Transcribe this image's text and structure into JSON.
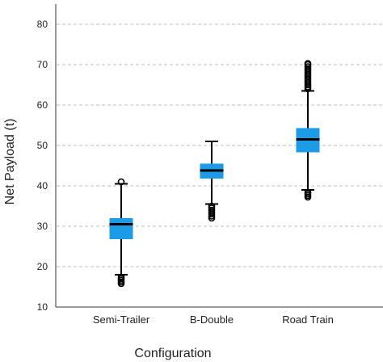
{
  "chart_data": {
    "type": "box",
    "xlabel": "Configuration",
    "ylabel": "Net Payload (t)",
    "ylim": [
      10,
      85
    ],
    "yticks": [
      10,
      20,
      30,
      40,
      50,
      60,
      70,
      80
    ],
    "grid": true,
    "box_color": "#1e9be6",
    "median_color": "#000000",
    "categories": [
      "Semi-Trailer",
      "B-Double",
      "Road Train"
    ],
    "boxes": [
      {
        "name": "Semi-Trailer",
        "q1": 26.8,
        "median": 30.5,
        "q3": 32.0,
        "whisker_low": 18.0,
        "whisker_high": 40.5,
        "outliers_low": [
          15.8,
          16.2,
          16.6,
          17.0,
          17.4
        ],
        "outliers_high": [
          41.0
        ]
      },
      {
        "name": "B-Double",
        "q1": 41.8,
        "median": 43.8,
        "q3": 45.5,
        "whisker_low": 35.5,
        "whisker_high": 51.0,
        "outliers_low": [
          32.0,
          32.5,
          33.0,
          33.5,
          34.0,
          34.5,
          35.0
        ],
        "outliers_high": []
      },
      {
        "name": "Road Train",
        "q1": 48.3,
        "median": 51.5,
        "q3": 54.3,
        "whisker_low": 39.0,
        "whisker_high": 63.5,
        "outliers_low": [
          37.2,
          37.6,
          38.0,
          38.4
        ],
        "outliers_high": [
          64.0,
          64.5,
          65.0,
          65.5,
          66.0,
          66.5,
          67.0,
          67.5,
          68.0,
          68.5,
          69.0,
          69.5,
          70.0,
          70.3
        ]
      }
    ]
  }
}
